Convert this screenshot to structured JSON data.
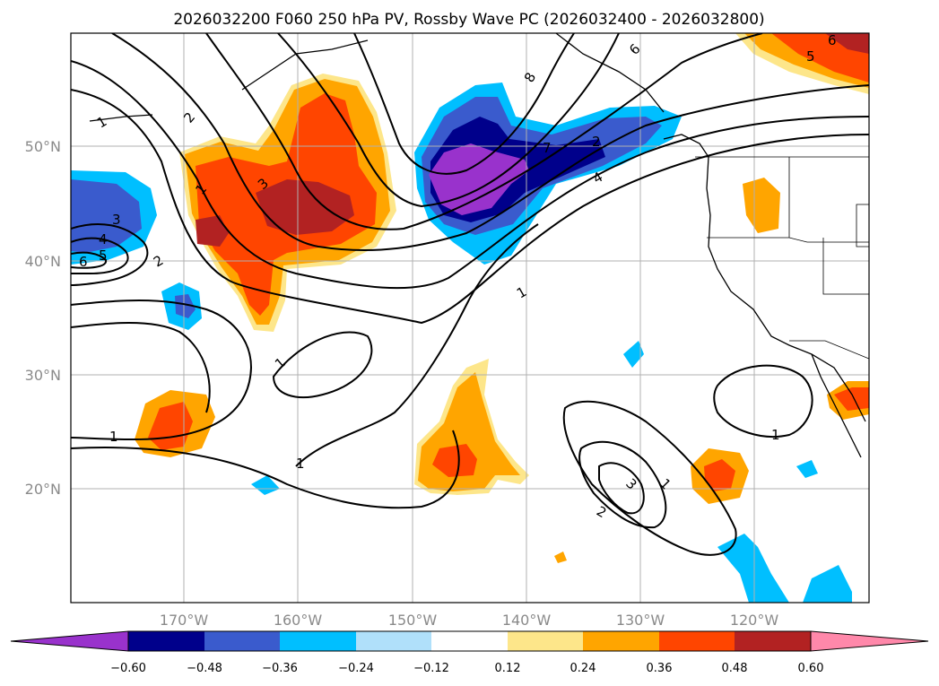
{
  "title": "2026032200 F060 250 hPa PV, Rossby Wave PC (2026032400 - 2026032800)",
  "map": {
    "lon_range": [
      -180,
      -110
    ],
    "lat_range": [
      10,
      60
    ],
    "lat_ticks": [
      {
        "value": 50,
        "label": "50°N"
      },
      {
        "value": 40,
        "label": "40°N"
      },
      {
        "value": 30,
        "label": "30°N"
      },
      {
        "value": 20,
        "label": "20°N"
      }
    ],
    "lon_ticks": [
      {
        "value": -170,
        "label": "170°W"
      },
      {
        "value": -160,
        "label": "160°W"
      },
      {
        "value": -150,
        "label": "150°W"
      },
      {
        "value": -140,
        "label": "140°W"
      },
      {
        "value": -130,
        "label": "130°W"
      },
      {
        "value": -120,
        "label": "120°W"
      }
    ],
    "gridlines": true
  },
  "colorbar": {
    "tick_labels": [
      "−0.60",
      "−0.48",
      "−0.36",
      "−0.24",
      "−0.12",
      "0.12",
      "0.24",
      "0.36",
      "0.48",
      "0.60"
    ],
    "colors": [
      "#9932cc",
      "#00008b",
      "#3a5bcd",
      "#00bfff",
      "#b0e0fa",
      "#ffffff",
      "#fde68a",
      "#ffa500",
      "#ff4500",
      "#b22222",
      "#ff88aa"
    ]
  },
  "contour_labels": [
    "2",
    "1",
    "3",
    "1",
    "2",
    "3",
    "4",
    "5",
    "6",
    "2",
    "1",
    "1",
    "1",
    "4",
    "8",
    "6",
    "7",
    "6",
    "5",
    "1",
    "1",
    "3",
    "1",
    "2"
  ],
  "colors": {
    "neg_strong": "#9932cc",
    "neg_dark": "#00008b",
    "neg_mid": "#3a5bcd",
    "neg_light": "#00bfff",
    "neg_pale": "#b0e0fa",
    "pos_pale": "#fde68a",
    "pos_light": "#ffa500",
    "pos_mid": "#ff4500",
    "pos_dark": "#b22222",
    "pos_strong": "#ff88aa"
  }
}
